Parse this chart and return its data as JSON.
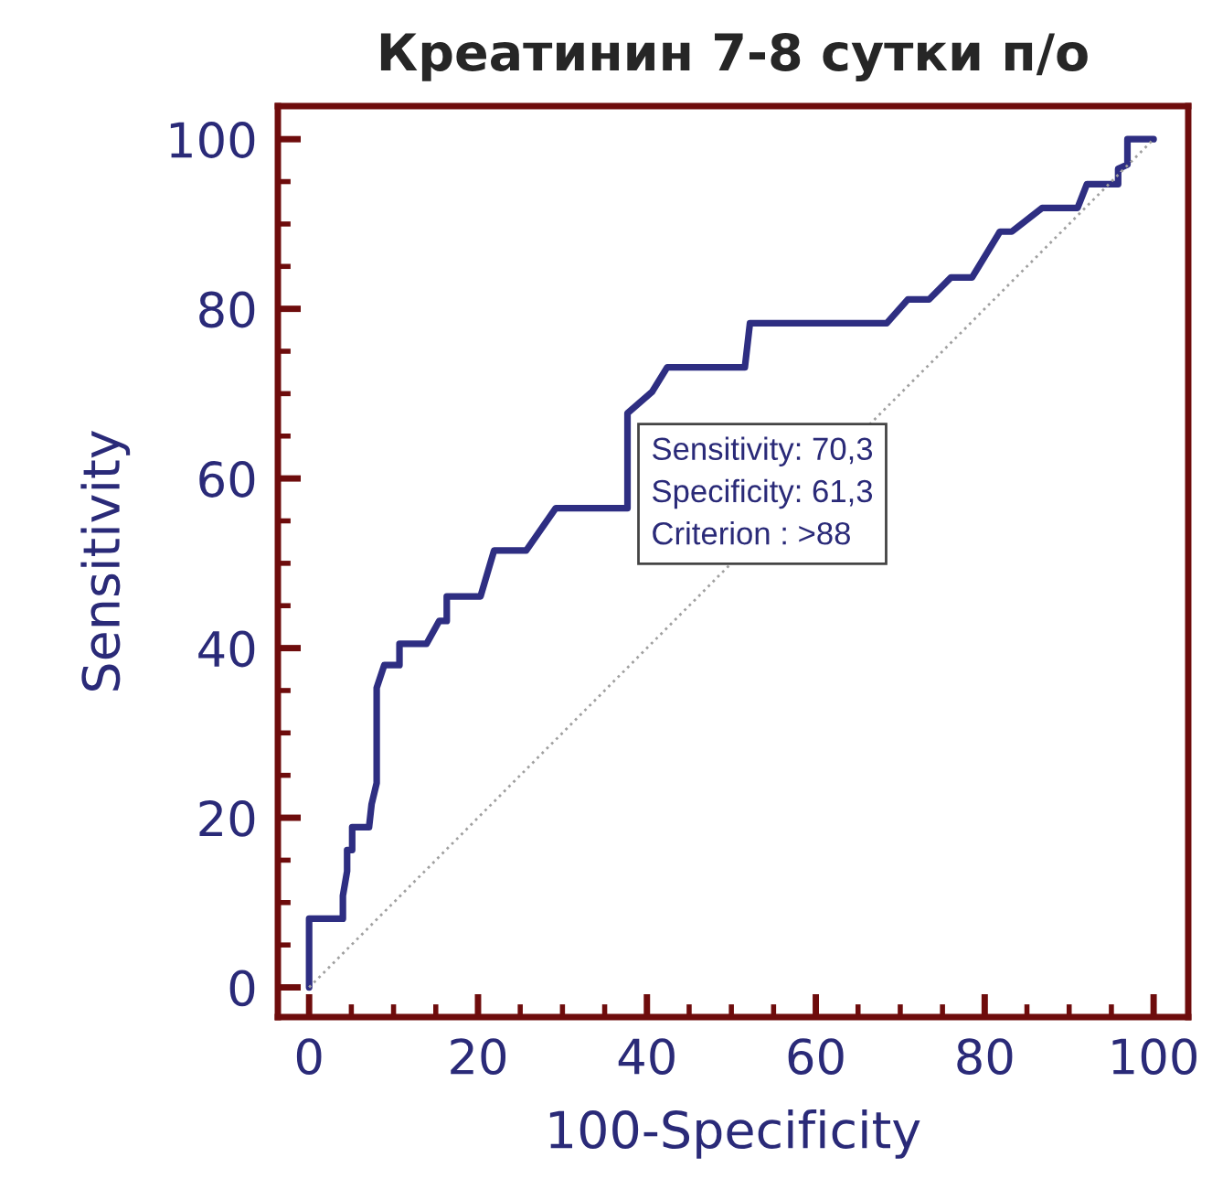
{
  "chart_data": {
    "type": "line",
    "title": "Креатинин 7-8 сутки п/о",
    "xlabel": "100-Specificity",
    "ylabel": "Sensitivity",
    "xlim": [
      -3.7,
      104.1
    ],
    "ylim": [
      -3.5,
      103.9
    ],
    "xticks": [
      0,
      20,
      40,
      60,
      80,
      100
    ],
    "yticks": [
      0,
      20,
      40,
      60,
      80,
      100
    ],
    "grid": false,
    "legend": false,
    "series": [
      {
        "color": "#2e2e82",
        "line_style": "solid",
        "x": [
          0,
          0,
          4.0,
          4.0,
          4.5,
          4.5,
          5.1,
          5.1,
          7.1,
          7.4,
          8.0,
          8.0,
          8.9,
          10.7,
          10.7,
          13.9,
          15.4,
          16.3,
          16.3,
          20.3,
          21.9,
          25.7,
          29.2,
          37.7,
          37.7,
          40.6,
          42.4,
          51.6,
          52.2,
          68.4,
          70.9,
          73.4,
          76.0,
          78.5,
          81.8,
          83.2,
          86.8,
          91.0,
          92.1,
          95.8,
          95.8,
          96.9,
          96.9,
          100
        ],
        "values": [
          0,
          8.1,
          8.1,
          10.8,
          13.7,
          16.2,
          16.2,
          18.9,
          18.9,
          21.6,
          24.1,
          35.3,
          38.0,
          38.0,
          40.5,
          40.5,
          43.2,
          43.2,
          46.1,
          46.1,
          51.5,
          51.5,
          56.5,
          56.5,
          67.7,
          70.2,
          73.1,
          73.1,
          78.3,
          78.3,
          81.1,
          81.1,
          83.7,
          83.7,
          89.1,
          89.1,
          91.9,
          91.9,
          94.7,
          94.7,
          96.5,
          97.0,
          100,
          100
        ]
      },
      {
        "color": "#a0a0a0",
        "line_style": "dotted",
        "x": [
          0,
          100
        ],
        "values": [
          0,
          100
        ]
      }
    ],
    "annotations": [
      {
        "text": "Sensitivity: 70,3\nSpecificity: 61,3\nCriterion : >88",
        "x": 38.7,
        "y": 70.3
      }
    ]
  }
}
